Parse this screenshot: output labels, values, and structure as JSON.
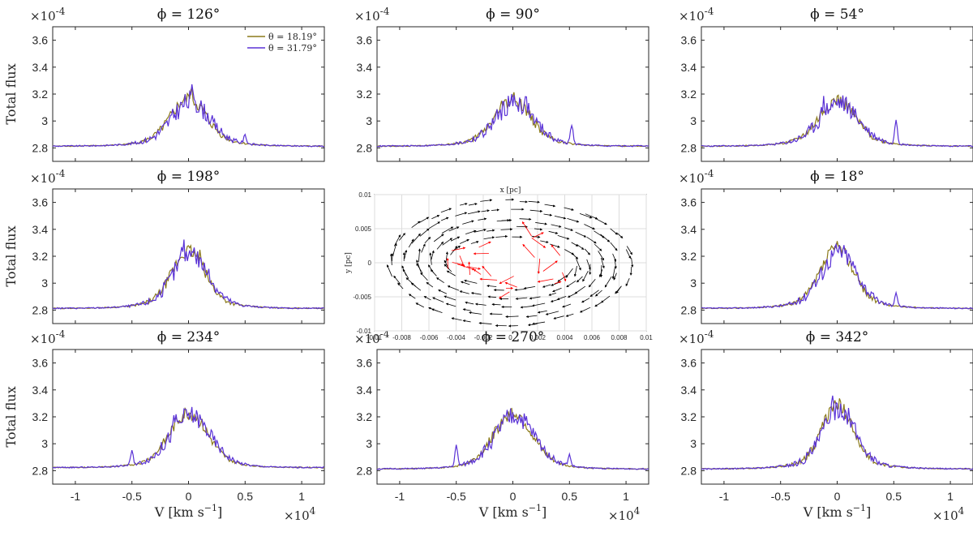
{
  "chart_data": {
    "type": "line",
    "layout": "3x3 grid; center panel is a velocity-field quiver plot",
    "ylabel": "Total flux",
    "xlabel": "V [km s$^{-1}$]",
    "xlabel_display": "V [km s",
    "xlabel_sup": "−1",
    "xlabel_close": "]",
    "x_exponent": "×10",
    "x_exponent_power": "4",
    "y_exponent": "×10",
    "y_exponent_power": "-4",
    "xlim": [
      -1.2,
      1.2
    ],
    "ylim": [
      2.7,
      3.7
    ],
    "xticks": [
      "-1",
      "-0.5",
      "0",
      "0.5",
      "1"
    ],
    "xtick_values": [
      -1,
      -0.5,
      0,
      0.5,
      1
    ],
    "yticks": [
      "2.8",
      "3",
      "3.2",
      "3.4",
      "3.6"
    ],
    "ytick_values": [
      2.8,
      3.0,
      3.2,
      3.4,
      3.6
    ],
    "legend": [
      {
        "label": "θ = 18.19°",
        "color": "#8b7a1a"
      },
      {
        "label": "θ = 31.79°",
        "color": "#5a32d6"
      }
    ],
    "panels": [
      {
        "title": "ϕ = 126°",
        "profile": {
          "base": 2.81,
          "a": 0.33,
          "w": 0.15,
          "s": 1,
          "spikes_a": [
            [
              0.02,
              0.06
            ]
          ],
          "spikes_b": [
            [
              0.04,
              0.1
            ],
            [
              0.5,
              0.06
            ]
          ]
        }
      },
      {
        "title": "ϕ = 90°",
        "profile": {
          "base": 2.81,
          "a": 0.33,
          "w": 0.15,
          "s": 2,
          "spikes_a": [],
          "spikes_b": [
            [
              0.52,
              0.14
            ],
            [
              0.12,
              0.05
            ]
          ]
        }
      },
      {
        "title": "ϕ = 54°",
        "profile": {
          "base": 2.81,
          "a": 0.32,
          "w": 0.15,
          "s": 3,
          "spikes_a": [],
          "spikes_b": [
            [
              -0.12,
              0.1
            ],
            [
              0.52,
              0.18
            ]
          ]
        }
      },
      {
        "title": "ϕ = 198°",
        "profile": {
          "base": 2.81,
          "a": 0.42,
          "w": 0.14,
          "s": 4,
          "spikes_a": [
            [
              0.1,
              0.05
            ]
          ],
          "spikes_b": [
            [
              -0.05,
              0.1
            ],
            [
              0.03,
              0.08
            ]
          ]
        }
      },
      {
        "title": "ϕ = 18°",
        "profile": {
          "base": 2.81,
          "a": 0.45,
          "w": 0.14,
          "s": 5,
          "spikes_a": [],
          "spikes_b": [
            [
              -0.22,
              0.06
            ],
            [
              0.52,
              0.1
            ]
          ]
        }
      },
      {
        "title": "ϕ = 234°",
        "profile": {
          "base": 2.82,
          "a": 0.4,
          "w": 0.16,
          "s": 6,
          "spikes_a": [],
          "spikes_b": [
            [
              -0.5,
              0.1
            ],
            [
              -0.12,
              0.08
            ]
          ]
        }
      },
      {
        "title": "ϕ = 270°",
        "profile": {
          "base": 2.81,
          "a": 0.41,
          "w": 0.16,
          "s": 7,
          "spikes_a": [],
          "spikes_b": [
            [
              -0.5,
              0.15
            ],
            [
              0.5,
              0.08
            ]
          ]
        }
      },
      {
        "title": "ϕ = 342°",
        "profile": {
          "base": 2.81,
          "a": 0.48,
          "w": 0.13,
          "s": 8,
          "spikes_a": [
            [
              0.12,
              0.05
            ]
          ],
          "spikes_b": [
            [
              -0.05,
              0.08
            ]
          ]
        }
      }
    ],
    "quiver": {
      "xlabel": "x [pc]",
      "ylabel": "y [pc]",
      "xlim": [
        -0.01,
        0.01
      ],
      "ylim": [
        -0.01,
        0.01
      ],
      "xticks": [
        "-0.01",
        "-0.008",
        "-0.006",
        "-0.004",
        "-0.002",
        "0",
        "0.002",
        "0.004",
        "0.006",
        "0.008",
        "0.01"
      ],
      "xtick_values": [
        -0.01,
        -0.008,
        -0.006,
        -0.004,
        -0.002,
        0,
        0.002,
        0.004,
        0.006,
        0.008,
        0.01
      ],
      "yticks": [
        "0.01",
        "0.005",
        "0",
        "-0.005",
        "-0.01"
      ],
      "ytick_values": [
        0.01,
        0.005,
        0,
        -0.005,
        -0.01
      ],
      "ring_color": "#000000",
      "inner_color": "#ff0000"
    }
  }
}
